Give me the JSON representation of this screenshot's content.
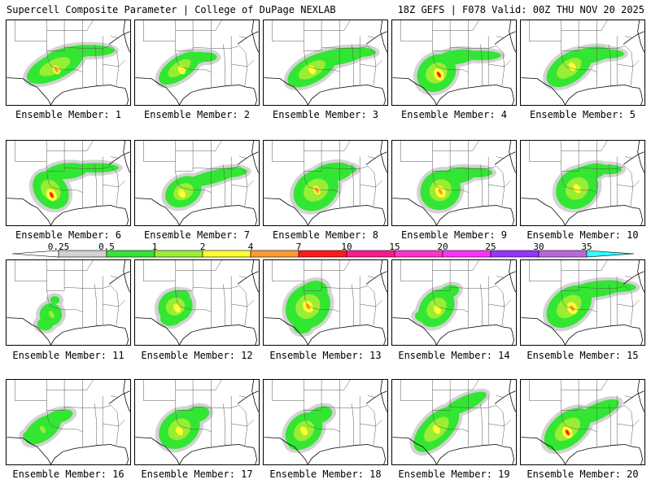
{
  "header": {
    "title_left": "Supercell Composite Parameter | College of DuPage NEXLAB",
    "title_right": "18Z GEFS | F078 Valid: 00Z THU NOV 20 2025"
  },
  "colorbar": {
    "ticks": [
      "0.25",
      "0.5",
      "1",
      "2",
      "4",
      "7",
      "10",
      "15",
      "20",
      "25",
      "30",
      "35"
    ],
    "colors": [
      "#d3d3d3",
      "#33e633",
      "#99ee33",
      "#ffff33",
      "#ff9933",
      "#ff1a1a",
      "#ff1a8c",
      "#ff33cc",
      "#ff33ff",
      "#9933ff",
      "#bb66dd",
      "#33ffff"
    ]
  },
  "members": [
    {
      "label": "Ensemble Member: 1",
      "intensity": "moderate",
      "max_color": "#ff9933"
    },
    {
      "label": "Ensemble Member: 2",
      "intensity": "moderate",
      "max_color": "#ffff33"
    },
    {
      "label": "Ensemble Member: 3",
      "intensity": "moderate",
      "max_color": "#ffff33"
    },
    {
      "label": "Ensemble Member: 4",
      "intensity": "strong",
      "max_color": "#ff1a1a"
    },
    {
      "label": "Ensemble Member: 5",
      "intensity": "moderate",
      "max_color": "#ffff33"
    },
    {
      "label": "Ensemble Member: 6",
      "intensity": "strong",
      "max_color": "#ff1a1a"
    },
    {
      "label": "Ensemble Member: 7",
      "intensity": "moderate",
      "max_color": "#ffff33"
    },
    {
      "label": "Ensemble Member: 8",
      "intensity": "moderate",
      "max_color": "#ff9933"
    },
    {
      "label": "Ensemble Member: 9",
      "intensity": "strong",
      "max_color": "#ff9933"
    },
    {
      "label": "Ensemble Member: 10",
      "intensity": "moderate",
      "max_color": "#ffff33"
    },
    {
      "label": "Ensemble Member: 11",
      "intensity": "weak",
      "max_color": "#99ee33"
    },
    {
      "label": "Ensemble Member: 12",
      "intensity": "moderate",
      "max_color": "#ffff33"
    },
    {
      "label": "Ensemble Member: 13",
      "intensity": "strong",
      "max_color": "#ff9933"
    },
    {
      "label": "Ensemble Member: 14",
      "intensity": "moderate",
      "max_color": "#ffff33"
    },
    {
      "label": "Ensemble Member: 15",
      "intensity": "strong",
      "max_color": "#ff9933"
    },
    {
      "label": "Ensemble Member: 16",
      "intensity": "weak",
      "max_color": "#99ee33"
    },
    {
      "label": "Ensemble Member: 17",
      "intensity": "moderate",
      "max_color": "#ffff33"
    },
    {
      "label": "Ensemble Member: 18",
      "intensity": "moderate",
      "max_color": "#99ee33"
    },
    {
      "label": "Ensemble Member: 19",
      "intensity": "moderate",
      "max_color": "#ffff33"
    },
    {
      "label": "Ensemble Member: 20",
      "intensity": "strong",
      "max_color": "#ff1a1a"
    }
  ]
}
